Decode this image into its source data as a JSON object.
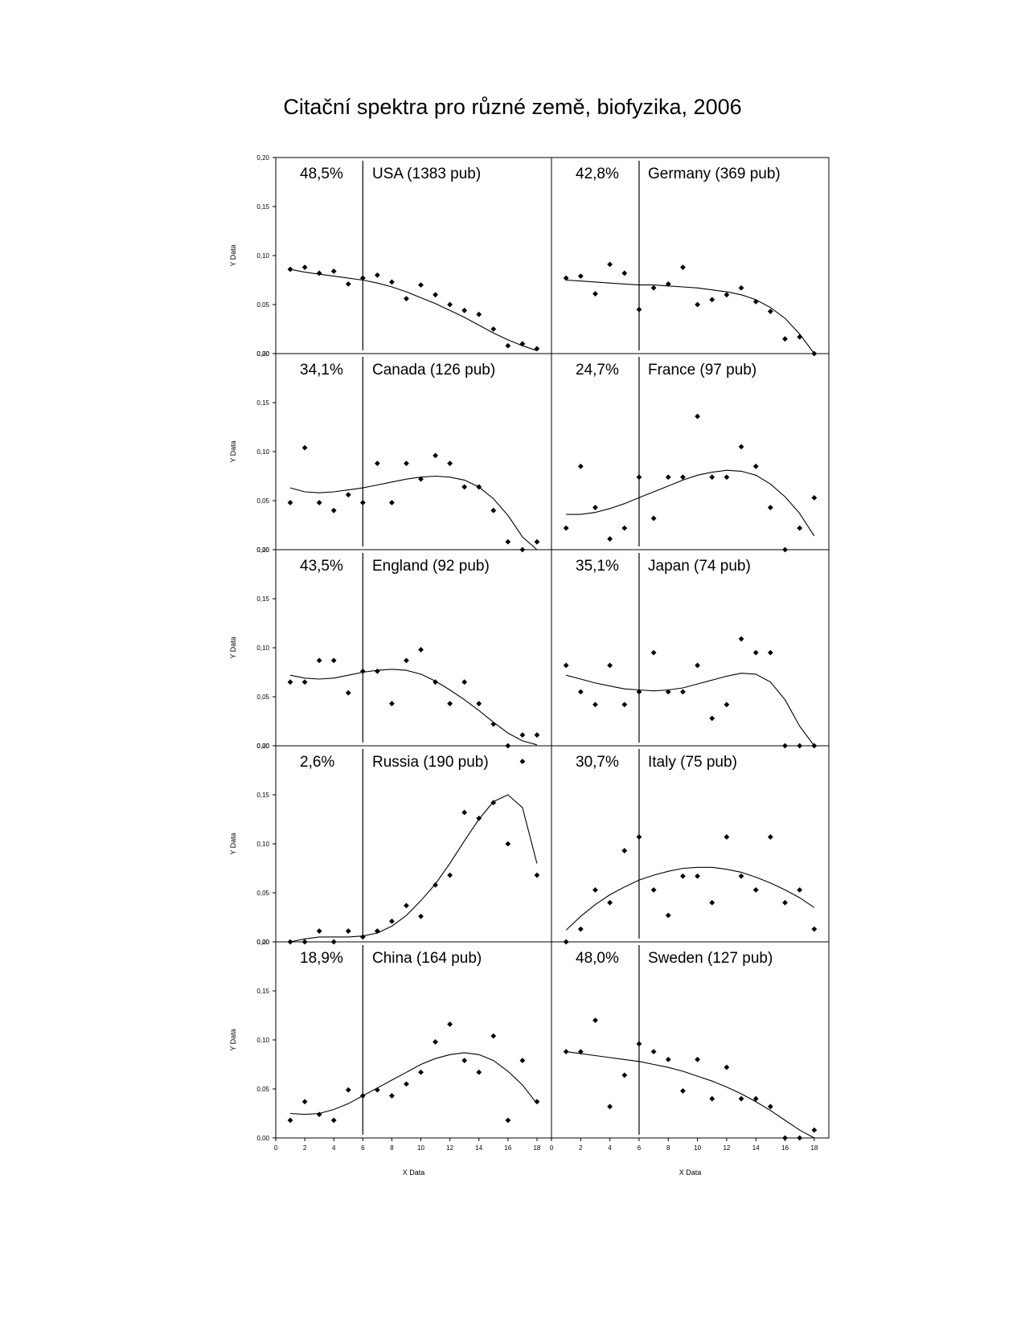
{
  "title": "Citační spektra pro různé země, biofyzika, 2006",
  "chart_data": {
    "type": "scatter",
    "title": "Citační spektra pro různé země, biofyzika, 2006",
    "xlabel": "X Data",
    "ylabel": "Y Data",
    "xlim": [
      0,
      19
    ],
    "ylim": [
      0,
      0.2
    ],
    "x_ticks": [
      "0",
      "2",
      "4",
      "6",
      "8",
      "10",
      "12",
      "14",
      "16",
      "18"
    ],
    "y_ticks": [
      "0,00",
      "0,05",
      "0,10",
      "0,15",
      "0,20"
    ],
    "vertical_line_x": 6,
    "x": [
      1,
      2,
      3,
      4,
      5,
      6,
      7,
      8,
      9,
      10,
      11,
      12,
      13,
      14,
      15,
      16,
      17,
      18
    ],
    "panels": [
      {
        "name": "USA (1383 pub)",
        "percent": "48,5%",
        "values": [
          0.086,
          0.088,
          0.082,
          0.084,
          0.071,
          0.077,
          0.08,
          0.073,
          0.056,
          0.07,
          0.06,
          0.05,
          0.044,
          0.04,
          0.025,
          0.008,
          0.01,
          0.005
        ],
        "trend": [
          0.086,
          0.083,
          0.081,
          0.079,
          0.077,
          0.075,
          0.072,
          0.068,
          0.063,
          0.057,
          0.051,
          0.044,
          0.037,
          0.029,
          0.021,
          0.014,
          0.008,
          0.003
        ]
      },
      {
        "name": "Germany (369 pub)",
        "percent": "42,8%",
        "values": [
          0.077,
          0.079,
          0.061,
          0.091,
          0.082,
          0.045,
          0.067,
          0.071,
          0.088,
          0.05,
          0.055,
          0.06,
          0.067,
          0.053,
          0.043,
          0.015,
          0.017,
          0.0
        ],
        "trend": [
          0.075,
          0.074,
          0.073,
          0.072,
          0.071,
          0.07,
          0.07,
          0.069,
          0.068,
          0.067,
          0.065,
          0.063,
          0.06,
          0.055,
          0.047,
          0.036,
          0.02,
          0.0
        ]
      },
      {
        "name": "Canada (126 pub)",
        "percent": "34,1%",
        "values": [
          0.048,
          0.104,
          0.048,
          0.04,
          0.056,
          0.048,
          0.088,
          0.048,
          0.088,
          0.072,
          0.096,
          0.088,
          0.064,
          0.064,
          0.04,
          0.008,
          0.0,
          0.008
        ],
        "trend": [
          0.063,
          0.059,
          0.058,
          0.059,
          0.061,
          0.063,
          0.066,
          0.069,
          0.072,
          0.074,
          0.075,
          0.074,
          0.071,
          0.064,
          0.052,
          0.035,
          0.013,
          0.0
        ]
      },
      {
        "name": "France (97 pub)",
        "percent": "24,7%",
        "values": [
          0.022,
          0.085,
          0.043,
          0.011,
          0.022,
          0.074,
          0.032,
          0.074,
          0.074,
          0.136,
          0.074,
          0.074,
          0.105,
          0.085,
          0.043,
          0.0,
          0.022,
          0.053
        ],
        "trend": [
          0.036,
          0.036,
          0.038,
          0.042,
          0.047,
          0.053,
          0.059,
          0.065,
          0.071,
          0.076,
          0.079,
          0.081,
          0.08,
          0.076,
          0.067,
          0.054,
          0.037,
          0.014
        ]
      },
      {
        "name": "England (92 pub)",
        "percent": "43,5%",
        "values": [
          0.065,
          0.065,
          0.087,
          0.087,
          0.054,
          0.076,
          0.076,
          0.043,
          0.087,
          0.098,
          0.065,
          0.043,
          0.065,
          0.043,
          0.022,
          0.0,
          0.011,
          0.011
        ],
        "trend": [
          0.072,
          0.069,
          0.068,
          0.069,
          0.072,
          0.075,
          0.077,
          0.078,
          0.077,
          0.073,
          0.066,
          0.057,
          0.047,
          0.036,
          0.024,
          0.013,
          0.005,
          0.001
        ]
      },
      {
        "name": "Japan (74 pub)",
        "percent": "35,1%",
        "values": [
          0.082,
          0.055,
          0.042,
          0.082,
          0.042,
          0.055,
          0.095,
          0.055,
          0.055,
          0.082,
          0.028,
          0.042,
          0.109,
          0.095,
          0.095,
          0.0,
          0.0,
          0.0
        ],
        "trend": [
          0.072,
          0.068,
          0.064,
          0.061,
          0.058,
          0.057,
          0.056,
          0.057,
          0.059,
          0.063,
          0.067,
          0.071,
          0.074,
          0.073,
          0.065,
          0.047,
          0.02,
          0.0
        ]
      },
      {
        "name": "Russia (190 pub)",
        "percent": "2,6%",
        "values": [
          0.0,
          0.0,
          0.011,
          0.0,
          0.011,
          0.005,
          0.011,
          0.021,
          0.037,
          0.026,
          0.058,
          0.068,
          0.132,
          0.126,
          0.142,
          0.1,
          0.184,
          0.068
        ],
        "trend": [
          0.0,
          0.003,
          0.005,
          0.005,
          0.005,
          0.006,
          0.009,
          0.016,
          0.027,
          0.042,
          0.059,
          0.08,
          0.103,
          0.125,
          0.143,
          0.15,
          0.137,
          0.08
        ]
      },
      {
        "name": "Italy (75 pub)",
        "percent": "30,7%",
        "values": [
          0.0,
          0.013,
          0.053,
          0.04,
          0.093,
          0.107,
          0.053,
          0.027,
          0.067,
          0.067,
          0.04,
          0.107,
          0.067,
          0.053,
          0.107,
          0.04,
          0.053,
          0.013
        ],
        "trend": [
          0.012,
          0.026,
          0.038,
          0.048,
          0.056,
          0.063,
          0.068,
          0.072,
          0.075,
          0.076,
          0.076,
          0.074,
          0.071,
          0.066,
          0.06,
          0.053,
          0.045,
          0.035
        ]
      },
      {
        "name": "China (164 pub)",
        "percent": "18,9%",
        "values": [
          0.018,
          0.037,
          0.024,
          0.018,
          0.049,
          0.043,
          0.049,
          0.043,
          0.055,
          0.067,
          0.098,
          0.116,
          0.079,
          0.067,
          0.104,
          0.018,
          0.079,
          0.037
        ],
        "trend": [
          0.025,
          0.024,
          0.025,
          0.029,
          0.035,
          0.043,
          0.051,
          0.059,
          0.067,
          0.075,
          0.081,
          0.085,
          0.087,
          0.085,
          0.079,
          0.068,
          0.054,
          0.035
        ]
      },
      {
        "name": "Sweden (127 pub)",
        "percent": "48,0%",
        "values": [
          0.088,
          0.088,
          0.12,
          0.032,
          0.064,
          0.096,
          0.088,
          0.08,
          0.048,
          0.08,
          0.04,
          0.072,
          0.04,
          0.04,
          0.032,
          0.0,
          0.0,
          0.008
        ],
        "trend": [
          0.088,
          0.086,
          0.084,
          0.082,
          0.08,
          0.078,
          0.075,
          0.072,
          0.068,
          0.063,
          0.058,
          0.052,
          0.045,
          0.037,
          0.028,
          0.018,
          0.008,
          0.0
        ]
      }
    ]
  }
}
